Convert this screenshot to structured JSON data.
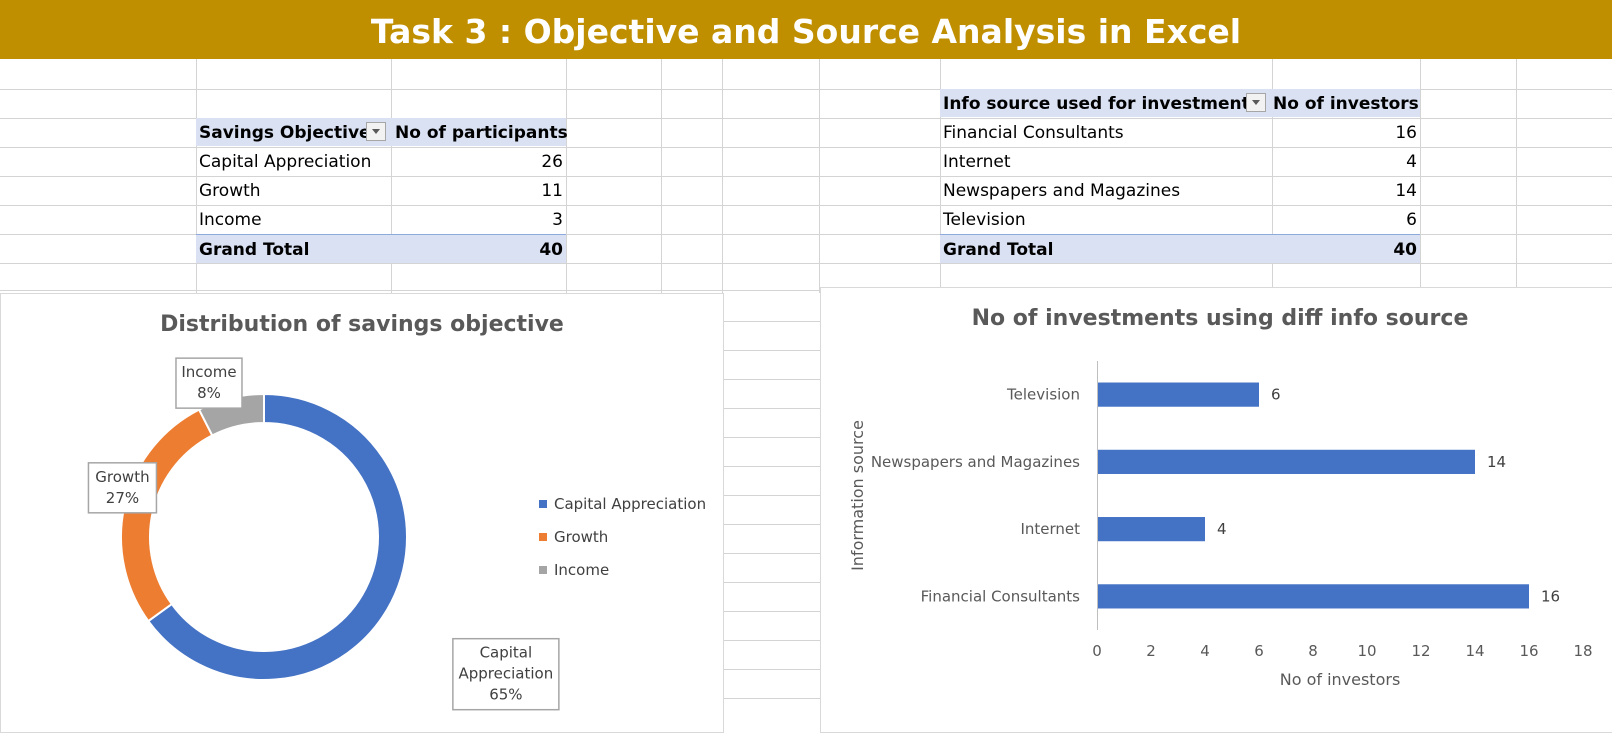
{
  "banner": {
    "title": "Task 3 : Objective and Source Analysis in Excel"
  },
  "savings_table": {
    "header_label": "Savings Objective",
    "header_value": "No of participants",
    "rows": [
      {
        "label": "Capital Appreciation",
        "value": "26"
      },
      {
        "label": "Growth",
        "value": "11"
      },
      {
        "label": "Income",
        "value": "3"
      }
    ],
    "total_label": "Grand Total",
    "total_value": "40"
  },
  "info_table": {
    "header_label": "Info source used for investment",
    "header_value": "No of investors",
    "rows": [
      {
        "label": "Financial Consultants",
        "value": "16"
      },
      {
        "label": "Internet",
        "value": "4"
      },
      {
        "label": "Newspapers and Magazines",
        "value": "14"
      },
      {
        "label": "Television",
        "value": "6"
      }
    ],
    "total_label": "Grand Total",
    "total_value": "40"
  },
  "chart_data": [
    {
      "type": "pie",
      "variant": "doughnut",
      "title": "Distribution of savings objective",
      "categories": [
        "Capital Appreciation",
        "Growth",
        "Income"
      ],
      "values": [
        26,
        11,
        3
      ],
      "labels": [
        {
          "name": "Capital",
          "name2": "Appreciation",
          "pct": "65%"
        },
        {
          "name": "Growth",
          "name2": "",
          "pct": "27%"
        },
        {
          "name": "Income",
          "name2": "",
          "pct": "8%"
        }
      ],
      "colors": [
        "#4472C4",
        "#ED7D31",
        "#A5A5A5"
      ],
      "legend": "right"
    },
    {
      "type": "bar",
      "orientation": "horizontal",
      "title": "No of investments using diff info source",
      "categories": [
        "Financial Consultants",
        "Internet",
        "Newspapers and Magazines",
        "Television"
      ],
      "values": [
        16,
        4,
        14,
        6
      ],
      "xlabel": "No of investors",
      "ylabel": "Information source",
      "xlim": [
        0,
        18
      ],
      "xticks": [
        0,
        2,
        4,
        6,
        8,
        10,
        12,
        14,
        16,
        18
      ],
      "color": "#4472C4",
      "grid": false
    }
  ]
}
